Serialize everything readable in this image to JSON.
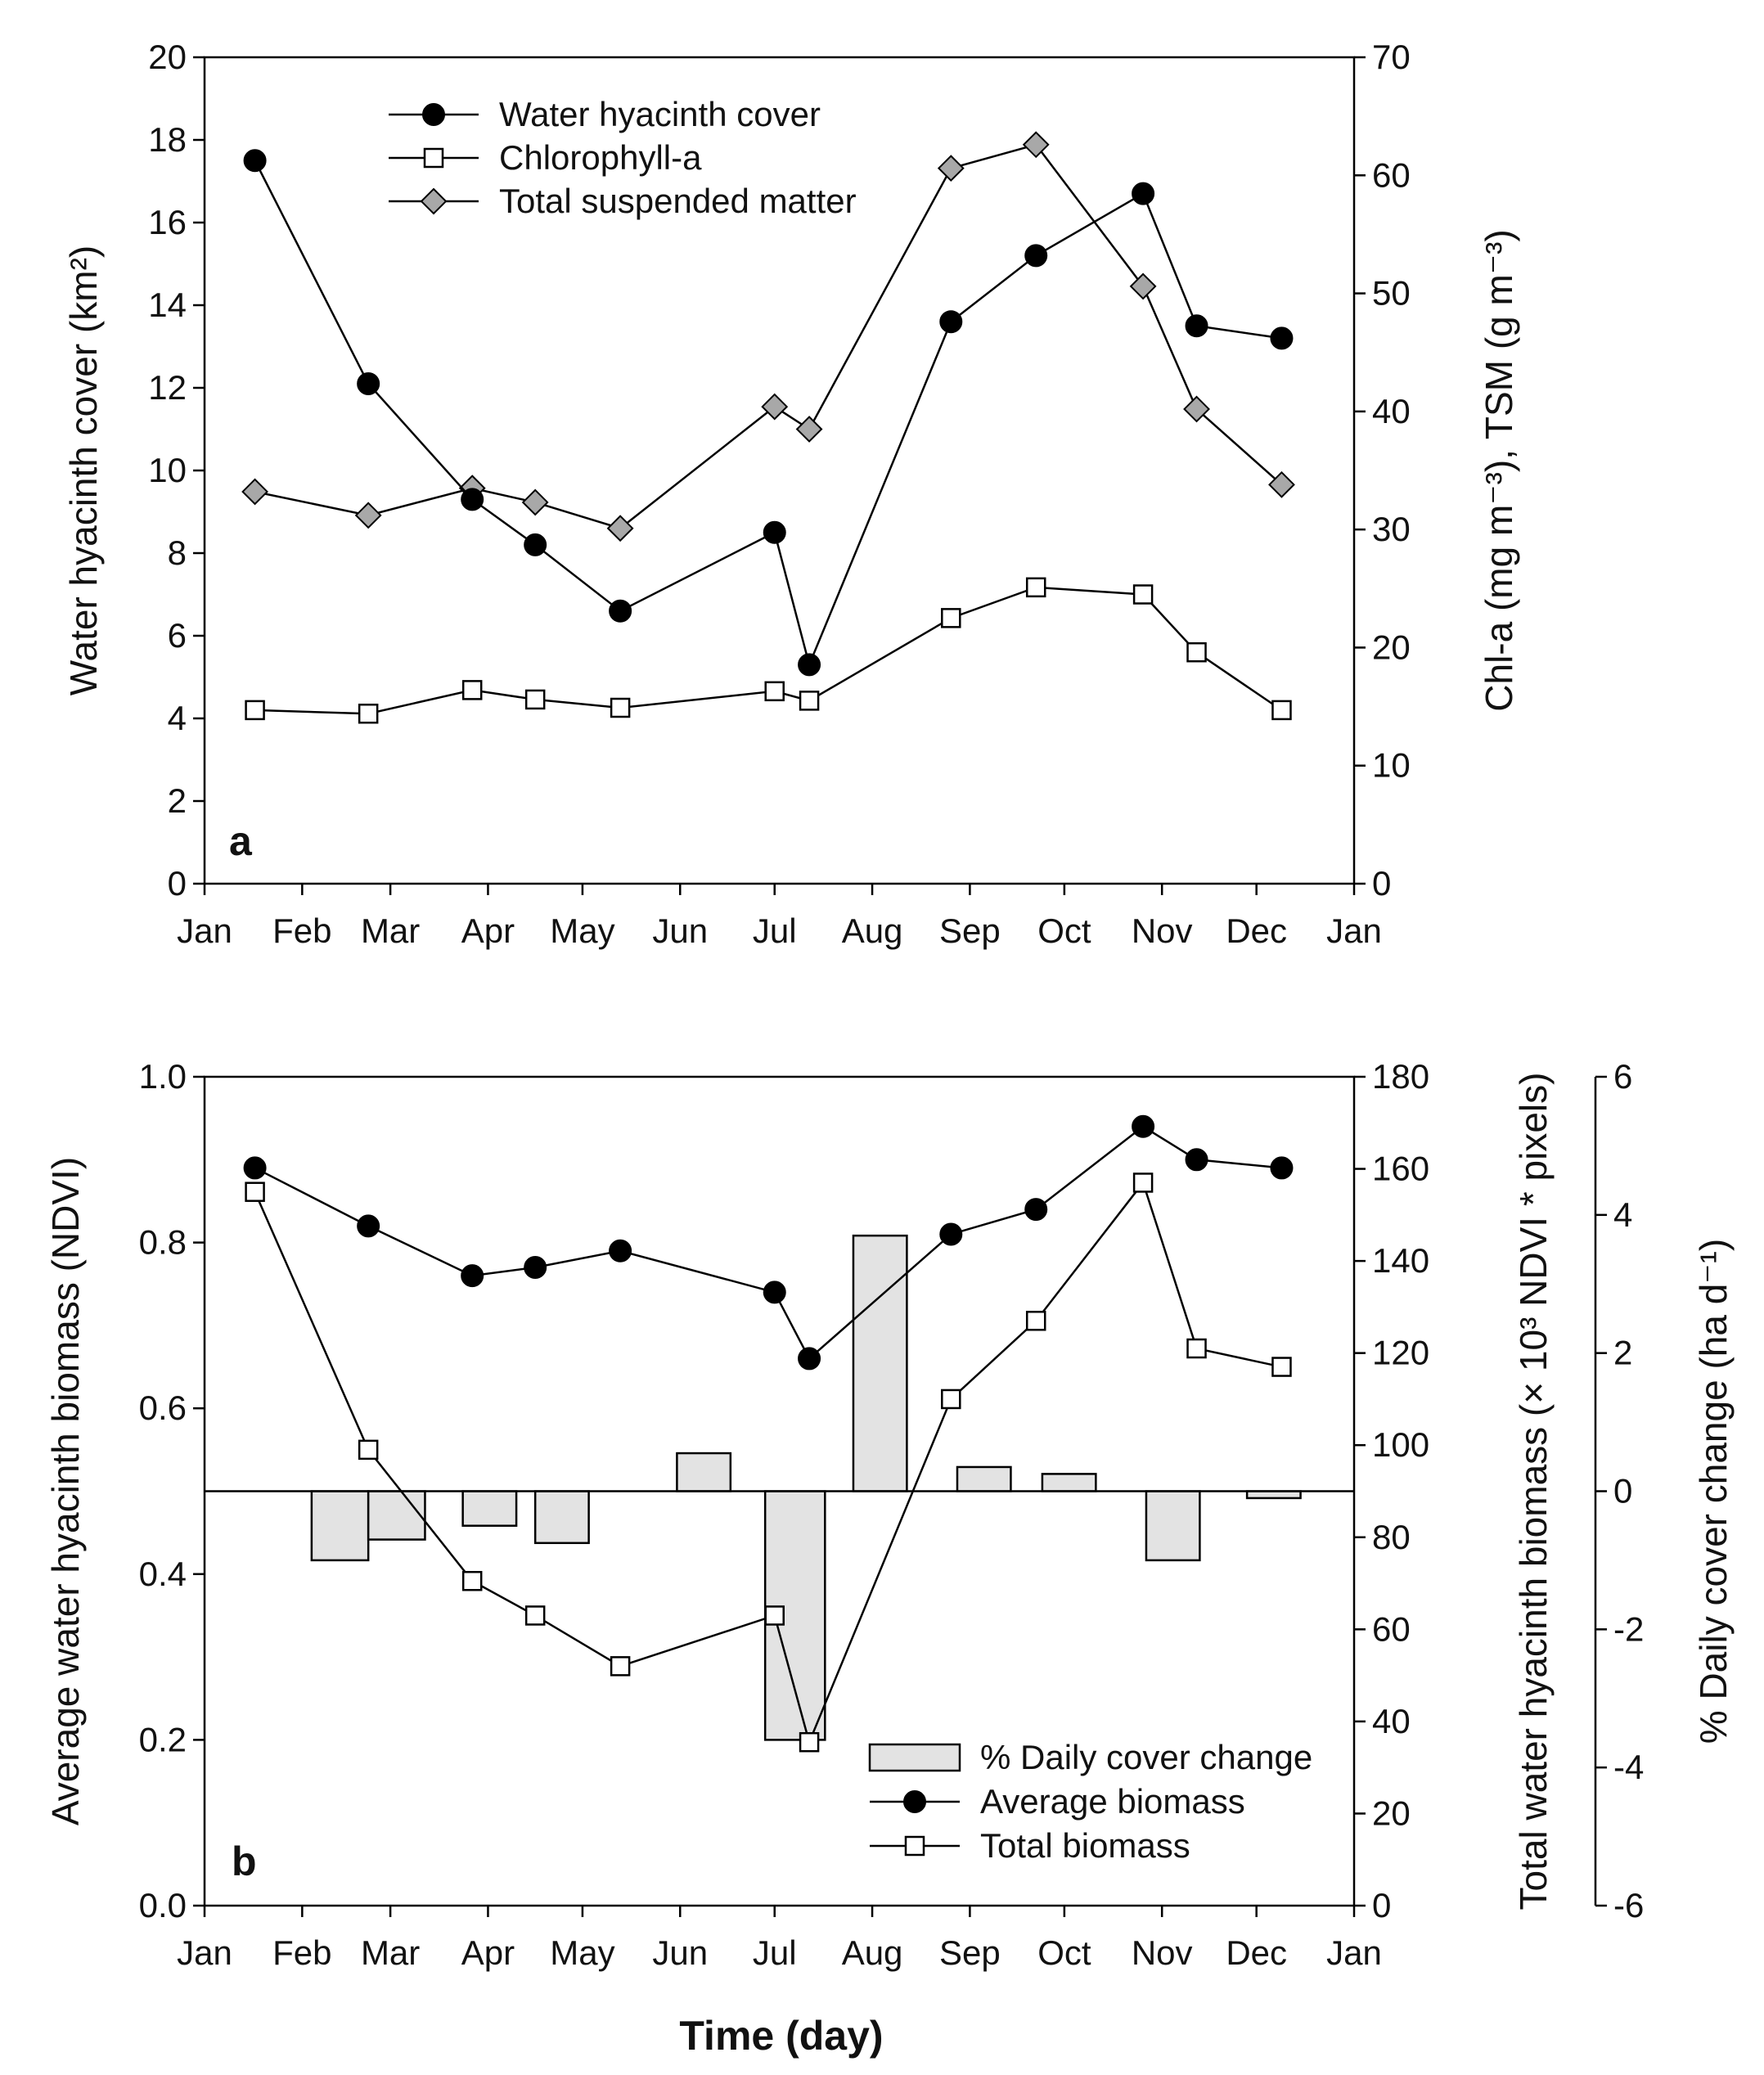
{
  "chart_data": [
    {
      "panel": "a",
      "type": "line",
      "x_axis": {
        "ticks": [
          "Jan",
          "Feb",
          "Mar",
          "Apr",
          "May",
          "Jun",
          "Jul",
          "Aug",
          "Sep",
          "Oct",
          "Nov",
          "Dec",
          "Jan"
        ],
        "range": [
          "2014-01-01",
          "2015-01-01"
        ]
      },
      "ylabel_left": "Water hyacinth cover (km²)",
      "ylim_left": [
        0,
        20
      ],
      "yticks_left": [
        "0",
        "2",
        "4",
        "6",
        "8",
        "10",
        "12",
        "14",
        "16",
        "18",
        "20"
      ],
      "ylabel_right": "Chl-a (mg m⁻³), TSM (g m⁻³)",
      "ylim_right": [
        0,
        70
      ],
      "yticks_right": [
        "0",
        "10",
        "20",
        "30",
        "40",
        "50",
        "60",
        "70"
      ],
      "series": [
        {
          "name": "Water hyacinth cover",
          "axis": "left",
          "marker": "circle-filled",
          "x": [
            "2014-01-17",
            "2014-02-22",
            "2014-03-27",
            "2014-04-16",
            "2014-05-13",
            "2014-07-01",
            "2014-07-12",
            "2014-08-26",
            "2014-09-22",
            "2014-10-26",
            "2014-11-12",
            "2014-12-09"
          ],
          "y": [
            17.5,
            12.1,
            9.3,
            8.2,
            6.6,
            8.5,
            5.3,
            13.6,
            15.2,
            16.7,
            13.5,
            13.2
          ]
        },
        {
          "name": "Chlorophyll-a",
          "axis": "right",
          "marker": "square-open",
          "x": [
            "2014-01-17",
            "2014-02-22",
            "2014-03-27",
            "2014-04-16",
            "2014-05-13",
            "2014-07-01",
            "2014-07-12",
            "2014-08-26",
            "2014-09-22",
            "2014-10-26",
            "2014-11-12",
            "2014-12-09"
          ],
          "y": [
            14.7,
            14.4,
            16.4,
            15.6,
            14.9,
            16.3,
            15.5,
            22.5,
            25.1,
            24.5,
            19.6,
            14.7
          ]
        },
        {
          "name": "Total suspended matter",
          "axis": "right",
          "marker": "diamond-gray",
          "x": [
            "2014-01-17",
            "2014-02-22",
            "2014-03-27",
            "2014-04-16",
            "2014-05-13",
            "2014-07-01",
            "2014-07-12",
            "2014-08-26",
            "2014-09-22",
            "2014-10-26",
            "2014-11-12",
            "2014-12-09"
          ],
          "y": [
            33.2,
            31.2,
            33.5,
            32.3,
            30.1,
            40.4,
            38.5,
            60.6,
            62.6,
            50.6,
            40.2,
            33.8
          ]
        }
      ],
      "legend_position": "top-left",
      "grid": false
    },
    {
      "panel": "b",
      "type": "line",
      "xlabel": "Time (day)",
      "x_axis": {
        "ticks": [
          "Jan",
          "Feb",
          "Mar",
          "Apr",
          "May",
          "Jun",
          "Jul",
          "Aug",
          "Sep",
          "Oct",
          "Nov",
          "Dec",
          "Jan"
        ],
        "range": [
          "2014-01-01",
          "2015-01-01"
        ]
      },
      "ylabel_left": "Average water hyacinth biomass (NDVI)",
      "ylim_left": [
        0,
        1
      ],
      "yticks_left": [
        "0.0",
        "0.2",
        "0.4",
        "0.6",
        "0.8",
        "1.0"
      ],
      "ylabel_right": "Total water hyacinth biomass (× 10³ NDVI * pixels)",
      "ylim_right": [
        0,
        180
      ],
      "yticks_right": [
        "0",
        "20",
        "40",
        "60",
        "80",
        "100",
        "120",
        "140",
        "160",
        "180"
      ],
      "ylabel_right2": "% Daily cover change (ha d⁻¹)",
      "ylim_right2": [
        -6,
        6
      ],
      "yticks_right2": [
        "-6",
        "-4",
        "-2",
        "0",
        "2",
        "4",
        "6"
      ],
      "series": [
        {
          "name": "% Daily cover change",
          "type": "bar",
          "axis": "right2",
          "intervals": [
            {
              "start": "2014-02-04",
              "end": "2014-02-22",
              "value": -1.0
            },
            {
              "start": "2014-02-22",
              "end": "2014-03-12",
              "value": -0.7
            },
            {
              "start": "2014-03-24",
              "end": "2014-04-10",
              "value": -0.5
            },
            {
              "start": "2014-04-16",
              "end": "2014-05-03",
              "value": -0.75
            },
            {
              "start": "2014-05-31",
              "end": "2014-06-17",
              "value": 0.55
            },
            {
              "start": "2014-06-28",
              "end": "2014-07-17",
              "value": -3.6
            },
            {
              "start": "2014-07-26",
              "end": "2014-08-12",
              "value": 3.7
            },
            {
              "start": "2014-08-28",
              "end": "2014-09-14",
              "value": 0.35
            },
            {
              "start": "2014-09-24",
              "end": "2014-10-11",
              "value": 0.25
            },
            {
              "start": "2014-10-27",
              "end": "2014-11-13",
              "value": -1.0
            },
            {
              "start": "2014-11-28",
              "end": "2014-12-15",
              "value": -0.1
            }
          ]
        },
        {
          "name": "Average biomass",
          "axis": "left",
          "marker": "circle-filled",
          "x": [
            "2014-01-17",
            "2014-02-22",
            "2014-03-27",
            "2014-04-16",
            "2014-05-13",
            "2014-07-01",
            "2014-07-12",
            "2014-08-26",
            "2014-09-22",
            "2014-10-26",
            "2014-11-12",
            "2014-12-09"
          ],
          "y": [
            0.89,
            0.82,
            0.76,
            0.77,
            0.79,
            0.74,
            0.66,
            0.81,
            0.84,
            0.94,
            0.9,
            0.89
          ]
        },
        {
          "name": "Total biomass",
          "axis": "right",
          "marker": "square-open",
          "x": [
            "2014-01-17",
            "2014-02-22",
            "2014-03-27",
            "2014-04-16",
            "2014-05-13",
            "2014-07-01",
            "2014-07-12",
            "2014-08-26",
            "2014-09-22",
            "2014-10-26",
            "2014-11-12",
            "2014-12-09"
          ],
          "y": [
            155,
            99,
            70.5,
            63,
            52,
            63,
            35.5,
            110,
            127,
            157,
            121,
            117
          ]
        }
      ],
      "legend_position": "bottom-right",
      "grid": false
    }
  ],
  "panel_labels": {
    "a": "a",
    "b": "b"
  }
}
